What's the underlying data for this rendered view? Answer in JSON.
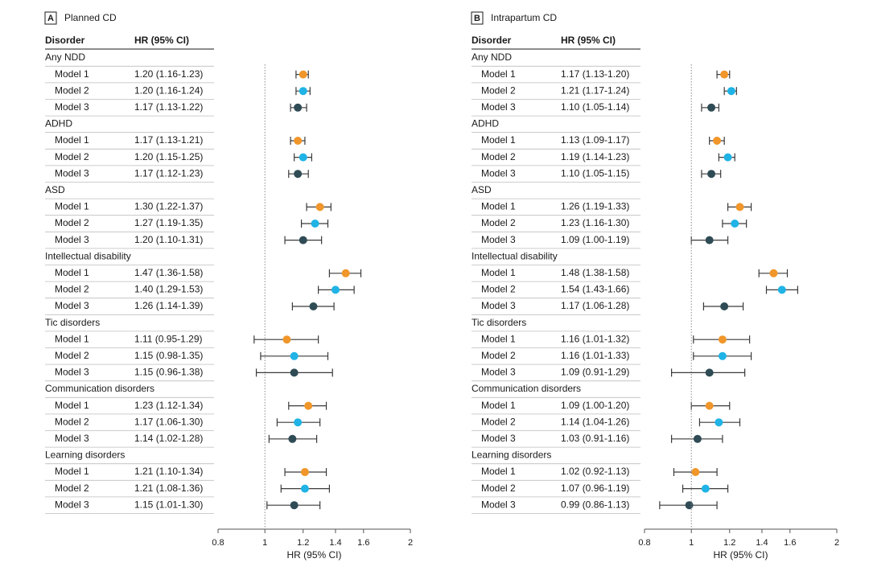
{
  "colors": {
    "model1": "#f0962a",
    "model2": "#1fb3e6",
    "model3": "#2f4b55",
    "whisker": "#3a3a3a",
    "axis": "#555555",
    "reference": "#888888",
    "row_divider": "#bdbdbd",
    "text": "#1a1a1a"
  },
  "chart_data": [
    {
      "type": "forest",
      "panel_letter": "A",
      "title": "Planned CD",
      "table_headers": [
        "Disorder",
        "HR (95% CI)"
      ],
      "xlabel": "HR (95% CI)",
      "x_scale": "log",
      "xlim": [
        0.8,
        2
      ],
      "x_ticks": [
        0.8,
        1,
        1.2,
        1.4,
        1.6,
        2
      ],
      "x_tick_labels": [
        "0.8",
        "1",
        "1.2",
        "1.4",
        "1.6",
        "2"
      ],
      "reference_line": 1,
      "groups": [
        {
          "name": "Any NDD",
          "rows": [
            {
              "model": "Model 1",
              "label": "1.20 (1.16-1.23)",
              "hr": 1.2,
              "lo": 1.16,
              "hi": 1.23
            },
            {
              "model": "Model 2",
              "label": "1.20 (1.16-1.24)",
              "hr": 1.2,
              "lo": 1.16,
              "hi": 1.24
            },
            {
              "model": "Model 3",
              "label": "1.17 (1.13-1.22)",
              "hr": 1.17,
              "lo": 1.13,
              "hi": 1.22
            }
          ]
        },
        {
          "name": "ADHD",
          "rows": [
            {
              "model": "Model 1",
              "label": "1.17 (1.13-1.21)",
              "hr": 1.17,
              "lo": 1.13,
              "hi": 1.21
            },
            {
              "model": "Model 2",
              "label": "1.20 (1.15-1.25)",
              "hr": 1.2,
              "lo": 1.15,
              "hi": 1.25
            },
            {
              "model": "Model 3",
              "label": "1.17 (1.12-1.23)",
              "hr": 1.17,
              "lo": 1.12,
              "hi": 1.23
            }
          ]
        },
        {
          "name": "ASD",
          "rows": [
            {
              "model": "Model 1",
              "label": "1.30 (1.22-1.37)",
              "hr": 1.3,
              "lo": 1.22,
              "hi": 1.37
            },
            {
              "model": "Model 2",
              "label": "1.27 (1.19-1.35)",
              "hr": 1.27,
              "lo": 1.19,
              "hi": 1.35
            },
            {
              "model": "Model 3",
              "label": "1.20 (1.10-1.31)",
              "hr": 1.2,
              "lo": 1.1,
              "hi": 1.31
            }
          ]
        },
        {
          "name": "Intellectual disability",
          "rows": [
            {
              "model": "Model 1",
              "label": "1.47 (1.36-1.58)",
              "hr": 1.47,
              "lo": 1.36,
              "hi": 1.58
            },
            {
              "model": "Model 2",
              "label": "1.40 (1.29-1.53)",
              "hr": 1.4,
              "lo": 1.29,
              "hi": 1.53
            },
            {
              "model": "Model 3",
              "label": "1.26 (1.14-1.39)",
              "hr": 1.26,
              "lo": 1.14,
              "hi": 1.39
            }
          ]
        },
        {
          "name": "Tic disorders",
          "rows": [
            {
              "model": "Model 1",
              "label": "1.11 (0.95-1.29)",
              "hr": 1.11,
              "lo": 0.95,
              "hi": 1.29
            },
            {
              "model": "Model 2",
              "label": "1.15 (0.98-1.35)",
              "hr": 1.15,
              "lo": 0.98,
              "hi": 1.35
            },
            {
              "model": "Model 3",
              "label": "1.15 (0.96-1.38)",
              "hr": 1.15,
              "lo": 0.96,
              "hi": 1.38
            }
          ]
        },
        {
          "name": "Communication disorders",
          "rows": [
            {
              "model": "Model 1",
              "label": "1.23 (1.12-1.34)",
              "hr": 1.23,
              "lo": 1.12,
              "hi": 1.34
            },
            {
              "model": "Model 2",
              "label": "1.17 (1.06-1.30)",
              "hr": 1.17,
              "lo": 1.06,
              "hi": 1.3
            },
            {
              "model": "Model 3",
              "label": "1.14 (1.02-1.28)",
              "hr": 1.14,
              "lo": 1.02,
              "hi": 1.28
            }
          ]
        },
        {
          "name": "Learning disorders",
          "rows": [
            {
              "model": "Model 1",
              "label": "1.21 (1.10-1.34)",
              "hr": 1.21,
              "lo": 1.1,
              "hi": 1.34
            },
            {
              "model": "Model 2",
              "label": "1.21 (1.08-1.36)",
              "hr": 1.21,
              "lo": 1.08,
              "hi": 1.36
            },
            {
              "model": "Model 3",
              "label": "1.15 (1.01-1.30)",
              "hr": 1.15,
              "lo": 1.01,
              "hi": 1.3
            }
          ]
        }
      ]
    },
    {
      "type": "forest",
      "panel_letter": "B",
      "title": "Intrapartum CD",
      "table_headers": [
        "Disorder",
        "HR (95% CI)"
      ],
      "xlabel": "HR (95% CI)",
      "x_scale": "log",
      "xlim": [
        0.8,
        2
      ],
      "x_ticks": [
        0.8,
        1,
        1.2,
        1.4,
        1.6,
        2
      ],
      "x_tick_labels": [
        "0.8",
        "1",
        "1.2",
        "1.4",
        "1.6",
        "2"
      ],
      "reference_line": 1,
      "groups": [
        {
          "name": "Any NDD",
          "rows": [
            {
              "model": "Model 1",
              "label": "1.17 (1.13-1.20)",
              "hr": 1.17,
              "lo": 1.13,
              "hi": 1.2
            },
            {
              "model": "Model 2",
              "label": "1.21 (1.17-1.24)",
              "hr": 1.21,
              "lo": 1.17,
              "hi": 1.24
            },
            {
              "model": "Model 3",
              "label": "1.10 (1.05-1.14)",
              "hr": 1.1,
              "lo": 1.05,
              "hi": 1.14
            }
          ]
        },
        {
          "name": "ADHD",
          "rows": [
            {
              "model": "Model 1",
              "label": "1.13 (1.09-1.17)",
              "hr": 1.13,
              "lo": 1.09,
              "hi": 1.17
            },
            {
              "model": "Model 2",
              "label": "1.19 (1.14-1.23)",
              "hr": 1.19,
              "lo": 1.14,
              "hi": 1.23
            },
            {
              "model": "Model 3",
              "label": "1.10 (1.05-1.15)",
              "hr": 1.1,
              "lo": 1.05,
              "hi": 1.15
            }
          ]
        },
        {
          "name": "ASD",
          "rows": [
            {
              "model": "Model 1",
              "label": "1.26 (1.19-1.33)",
              "hr": 1.26,
              "lo": 1.19,
              "hi": 1.33
            },
            {
              "model": "Model 2",
              "label": "1.23 (1.16-1.30)",
              "hr": 1.23,
              "lo": 1.16,
              "hi": 1.3
            },
            {
              "model": "Model 3",
              "label": "1.09 (1.00-1.19)",
              "hr": 1.09,
              "lo": 1.0,
              "hi": 1.19
            }
          ]
        },
        {
          "name": "Intellectual disability",
          "rows": [
            {
              "model": "Model 1",
              "label": "1.48 (1.38-1.58)",
              "hr": 1.48,
              "lo": 1.38,
              "hi": 1.58
            },
            {
              "model": "Model 2",
              "label": "1.54 (1.43-1.66)",
              "hr": 1.54,
              "lo": 1.43,
              "hi": 1.66
            },
            {
              "model": "Model 3",
              "label": "1.17 (1.06-1.28)",
              "hr": 1.17,
              "lo": 1.06,
              "hi": 1.28
            }
          ]
        },
        {
          "name": "Tic disorders",
          "rows": [
            {
              "model": "Model 1",
              "label": "1.16 (1.01-1.32)",
              "hr": 1.16,
              "lo": 1.01,
              "hi": 1.32
            },
            {
              "model": "Model 2",
              "label": "1.16 (1.01-1.33)",
              "hr": 1.16,
              "lo": 1.01,
              "hi": 1.33
            },
            {
              "model": "Model 3",
              "label": "1.09 (0.91-1.29)",
              "hr": 1.09,
              "lo": 0.91,
              "hi": 1.29
            }
          ]
        },
        {
          "name": "Communication disorders",
          "rows": [
            {
              "model": "Model 1",
              "label": "1.09 (1.00-1.20)",
              "hr": 1.09,
              "lo": 1.0,
              "hi": 1.2
            },
            {
              "model": "Model 2",
              "label": "1.14 (1.04-1.26)",
              "hr": 1.14,
              "lo": 1.04,
              "hi": 1.26
            },
            {
              "model": "Model 3",
              "label": "1.03 (0.91-1.16)",
              "hr": 1.03,
              "lo": 0.91,
              "hi": 1.16
            }
          ]
        },
        {
          "name": "Learning disorders",
          "rows": [
            {
              "model": "Model 1",
              "label": "1.02 (0.92-1.13)",
              "hr": 1.02,
              "lo": 0.92,
              "hi": 1.13
            },
            {
              "model": "Model 2",
              "label": "1.07 (0.96-1.19)",
              "hr": 1.07,
              "lo": 0.96,
              "hi": 1.19
            },
            {
              "model": "Model 3",
              "label": "0.99 (0.86-1.13)",
              "hr": 0.99,
              "lo": 0.86,
              "hi": 1.13
            }
          ]
        }
      ]
    }
  ]
}
